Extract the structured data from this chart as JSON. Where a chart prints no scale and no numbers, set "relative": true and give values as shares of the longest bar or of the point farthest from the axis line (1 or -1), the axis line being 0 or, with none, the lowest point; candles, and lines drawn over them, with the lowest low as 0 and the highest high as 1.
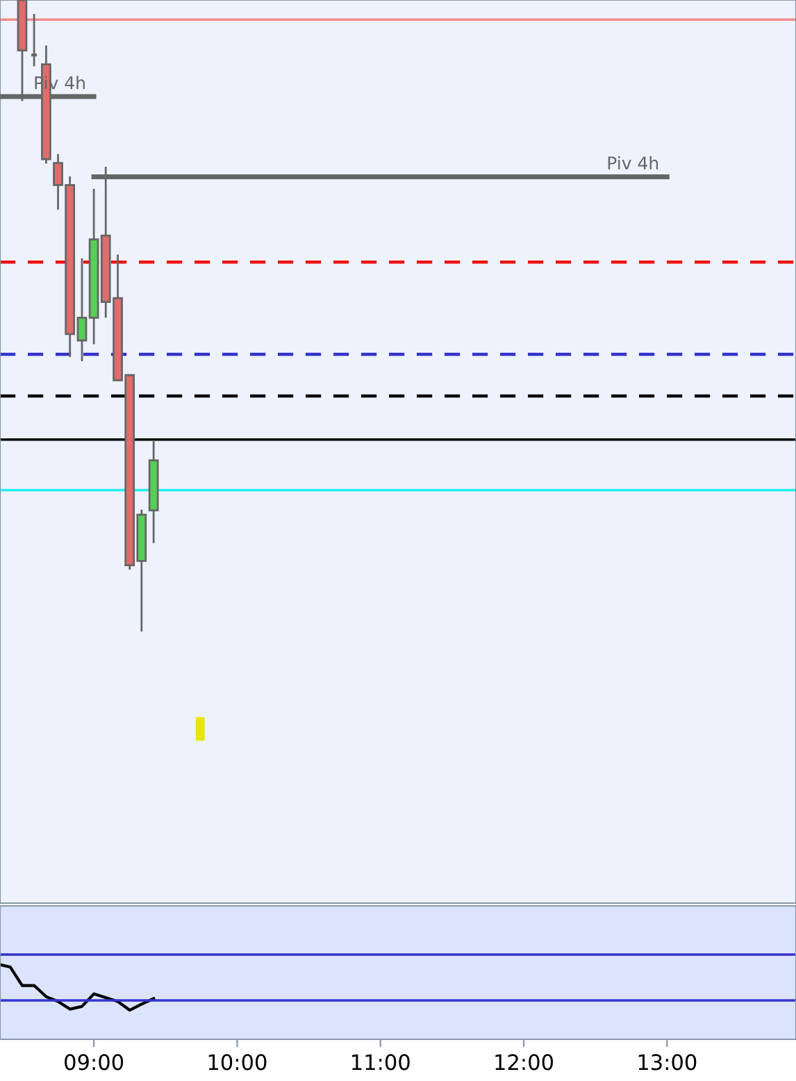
{
  "chart_data": [
    {
      "type": "candlestick",
      "relative": true,
      "tick_labels": false,
      "grid": false,
      "legend": false,
      "x": [
        8.5,
        8.583,
        8.667,
        8.75,
        8.833,
        8.917,
        9.0,
        9.083,
        9.167,
        9.25,
        9.333,
        9.417
      ],
      "ohlc": [
        [
          1.0,
          1.0,
          0.84,
          0.92
        ],
        [
          0.913,
          0.978,
          0.895,
          0.913
        ],
        [
          0.898,
          0.928,
          0.741,
          0.748
        ],
        [
          0.742,
          0.756,
          0.668,
          0.707
        ],
        [
          0.707,
          0.721,
          0.435,
          0.471
        ],
        [
          0.461,
          0.591,
          0.428,
          0.497
        ],
        [
          0.497,
          0.701,
          0.455,
          0.621
        ],
        [
          0.627,
          0.736,
          0.497,
          0.522
        ],
        [
          0.528,
          0.597,
          0.398,
          0.398
        ],
        [
          0.406,
          0.406,
          0.098,
          0.105
        ],
        [
          0.112,
          0.193,
          0.0,
          0.185
        ],
        [
          0.192,
          0.303,
          0.14,
          0.271
        ]
      ],
      "colors": [
        "#e06c6c",
        "#666666",
        "#e06c6c",
        "#e06c6c",
        "#e06c6c",
        "#55d055",
        "#55d055",
        "#e06c6c",
        "#e06c6c",
        "#e06c6c",
        "#55d055",
        "#55d055"
      ],
      "xlim": [
        8.345,
        13.9
      ],
      "ref_lines": [
        {
          "axis": "y",
          "value": 0.969,
          "color": "#f08c8c",
          "line_style": "solid"
        },
        {
          "axis": "y",
          "value": 0.585,
          "color": "#ee1111",
          "line_style": "dashed"
        },
        {
          "axis": "y",
          "value": 0.439,
          "color": "#3333cc",
          "line_style": "dashed"
        },
        {
          "axis": "y",
          "value": 0.373,
          "color": "#000000",
          "line_style": "dashed"
        },
        {
          "axis": "y",
          "value": 0.304,
          "color": "#000000",
          "line_style": "solid"
        },
        {
          "axis": "y",
          "value": 0.224,
          "color": "#22eeee",
          "line_style": "solid"
        }
      ],
      "series": [
        {
          "name": "Piv 4h",
          "type": "line",
          "x": [
            8.345,
            9.0
          ],
          "values": [
            0.847,
            0.847
          ],
          "color": "#666666"
        },
        {
          "name": "Piv 4h",
          "type": "line",
          "x": [
            9.0,
            13.0
          ],
          "values": [
            0.72,
            0.72
          ],
          "color": "#666666"
        }
      ]
    },
    {
      "type": "line",
      "relative": true,
      "tick_labels": "x",
      "grid": false,
      "legend": false,
      "xlim": [
        8.345,
        13.9
      ],
      "xticks": [
        {
          "value": 9,
          "label": "09:00"
        },
        {
          "value": 10,
          "label": "10:00"
        },
        {
          "value": 11,
          "label": "11:00"
        },
        {
          "value": 12,
          "label": "12:00"
        },
        {
          "value": 13,
          "label": "13:00"
        }
      ],
      "ref_lines": [
        {
          "axis": "y",
          "value": 1.136,
          "color": "#3333cc",
          "line_style": "solid"
        },
        {
          "axis": "y",
          "value": 0.521,
          "color": "#3333cc",
          "line_style": "solid"
        }
      ],
      "series": [
        {
          "color": "#000000",
          "x": [
            8.345,
            8.417,
            8.5,
            8.583,
            8.667,
            8.75,
            8.833,
            8.917,
            9.0,
            9.083,
            9.167,
            9.25,
            9.333,
            9.417
          ],
          "values": [
            1.0,
            0.968,
            0.721,
            0.721,
            0.572,
            0.508,
            0.404,
            0.441,
            0.609,
            0.559,
            0.508,
            0.391,
            0.471,
            0.546
          ]
        }
      ]
    }
  ]
}
